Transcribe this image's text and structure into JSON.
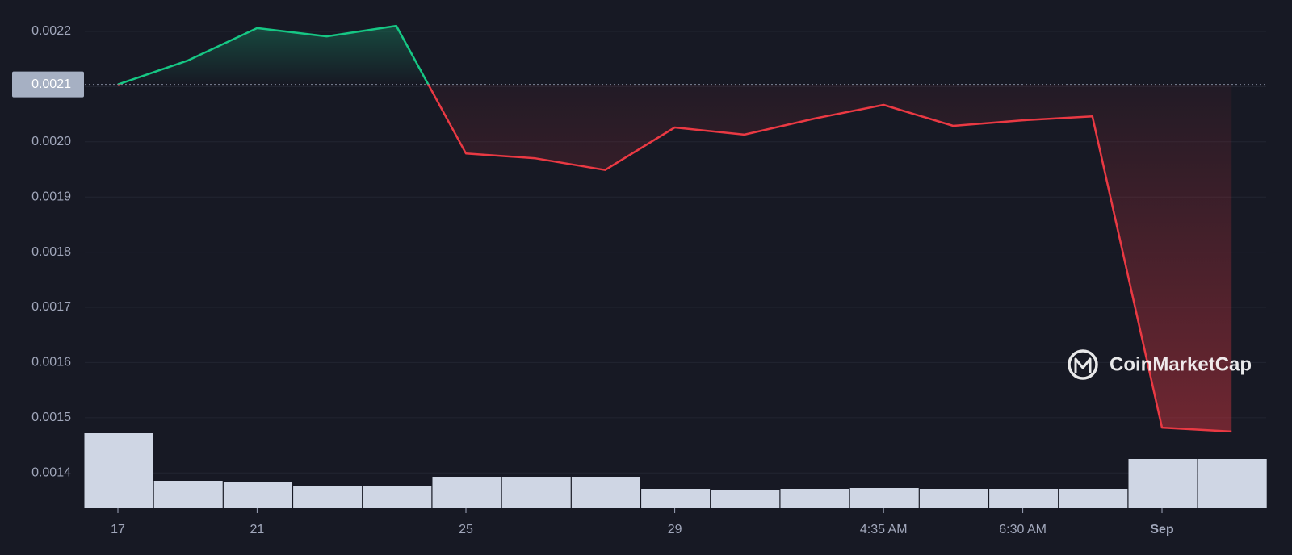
{
  "chart_data": {
    "type": "line",
    "categories": [
      "17",
      null,
      "21",
      null,
      null,
      "25",
      null,
      null,
      "29",
      null,
      null,
      "4:35 AM",
      null,
      "6:30 AM",
      null,
      "Sep",
      null
    ],
    "values": [
      0.002104,
      0.002147,
      0.002206,
      0.002191,
      0.00221,
      0.001979,
      0.00197,
      0.001949,
      0.002026,
      0.002013,
      0.002042,
      0.002067,
      0.002029,
      0.002039,
      0.002046,
      0.001482,
      0.001475
    ],
    "volume": [
      93,
      34,
      33,
      28,
      28,
      39,
      39,
      39,
      24,
      23,
      24,
      25,
      24,
      24,
      24,
      61,
      61
    ],
    "baseline": {
      "value": 0.002104,
      "label": "0.0021"
    },
    "ylim": [
      0.001336,
      0.002257
    ],
    "yticks": [
      0.0014,
      0.0015,
      0.0016,
      0.0017,
      0.0018,
      0.0019,
      {
        "value": 0.002,
        "label": "0.0020"
      },
      0.0021,
      0.0022
    ],
    "up_color": "#16c784",
    "down_color": "#ea3943",
    "volume_color": "#cfd6e4",
    "grid": true,
    "x_bold_index": 15,
    "watermark": "CoinMarketCap"
  }
}
